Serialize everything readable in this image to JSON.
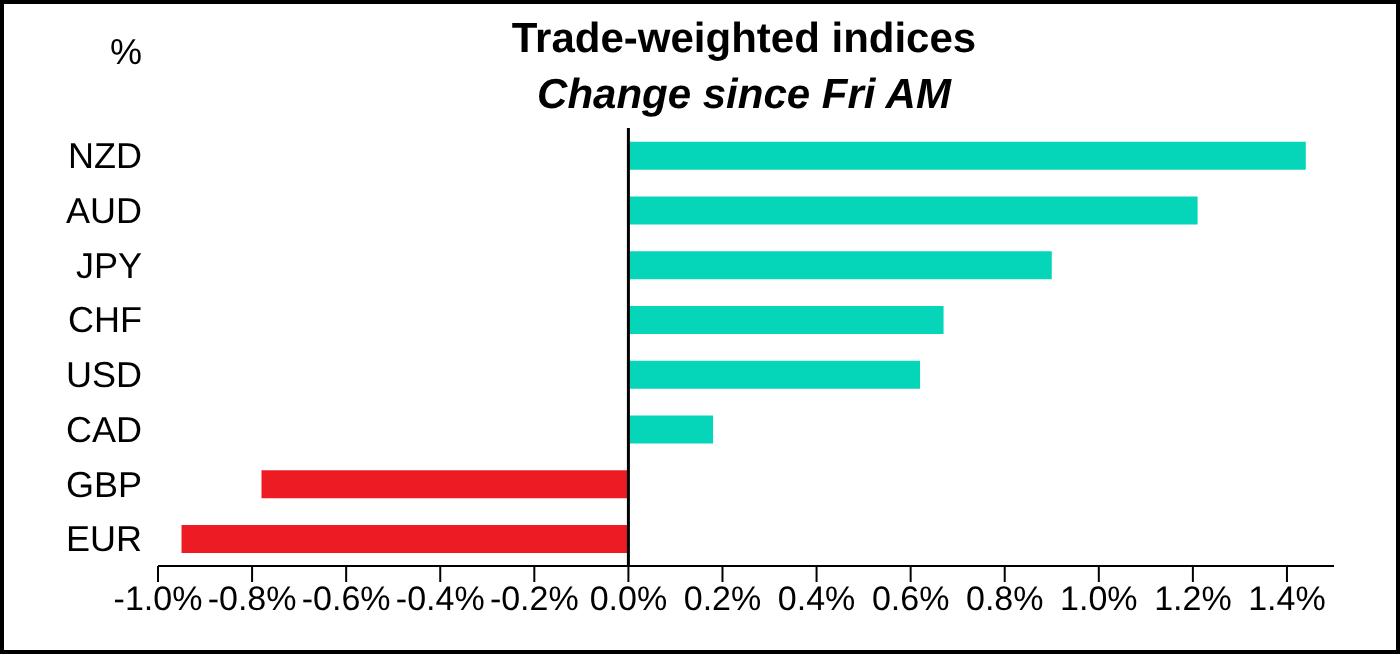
{
  "chart_data": {
    "type": "bar",
    "orientation": "horizontal",
    "title": "Trade-weighted indices",
    "subtitle": "Change since Fri AM",
    "ylabel": "%",
    "categories": [
      "NZD",
      "AUD",
      "JPY",
      "CHF",
      "USD",
      "CAD",
      "GBP",
      "EUR"
    ],
    "values": [
      1.44,
      1.21,
      0.9,
      0.67,
      0.62,
      0.18,
      -0.78,
      -0.95
    ],
    "colors": [
      "#05d5b9",
      "#05d5b9",
      "#05d5b9",
      "#05d5b9",
      "#05d5b9",
      "#05d5b9",
      "#ed1c24",
      "#ed1c24"
    ],
    "xlim": [
      -1.0,
      1.5
    ],
    "xticks": [
      {
        "value": -1.0,
        "label": "-1.0%"
      },
      {
        "value": -0.8,
        "label": "-0.8%"
      },
      {
        "value": -0.6,
        "label": "-0.6%"
      },
      {
        "value": -0.4,
        "label": "-0.4%"
      },
      {
        "value": -0.2,
        "label": "-0.2%"
      },
      {
        "value": 0,
        "label": "0.0%"
      },
      {
        "value": 0.2,
        "label": "0.2%"
      },
      {
        "value": 0.4,
        "label": "0.4%"
      },
      {
        "value": 0.6,
        "label": "0.6%"
      },
      {
        "value": 0.8,
        "label": "0.8%"
      },
      {
        "value": 1.0,
        "label": "1.0%"
      },
      {
        "value": 1.2,
        "label": "1.2%"
      },
      {
        "value": 1.4,
        "label": "1.4%"
      }
    ],
    "legend": false
  }
}
